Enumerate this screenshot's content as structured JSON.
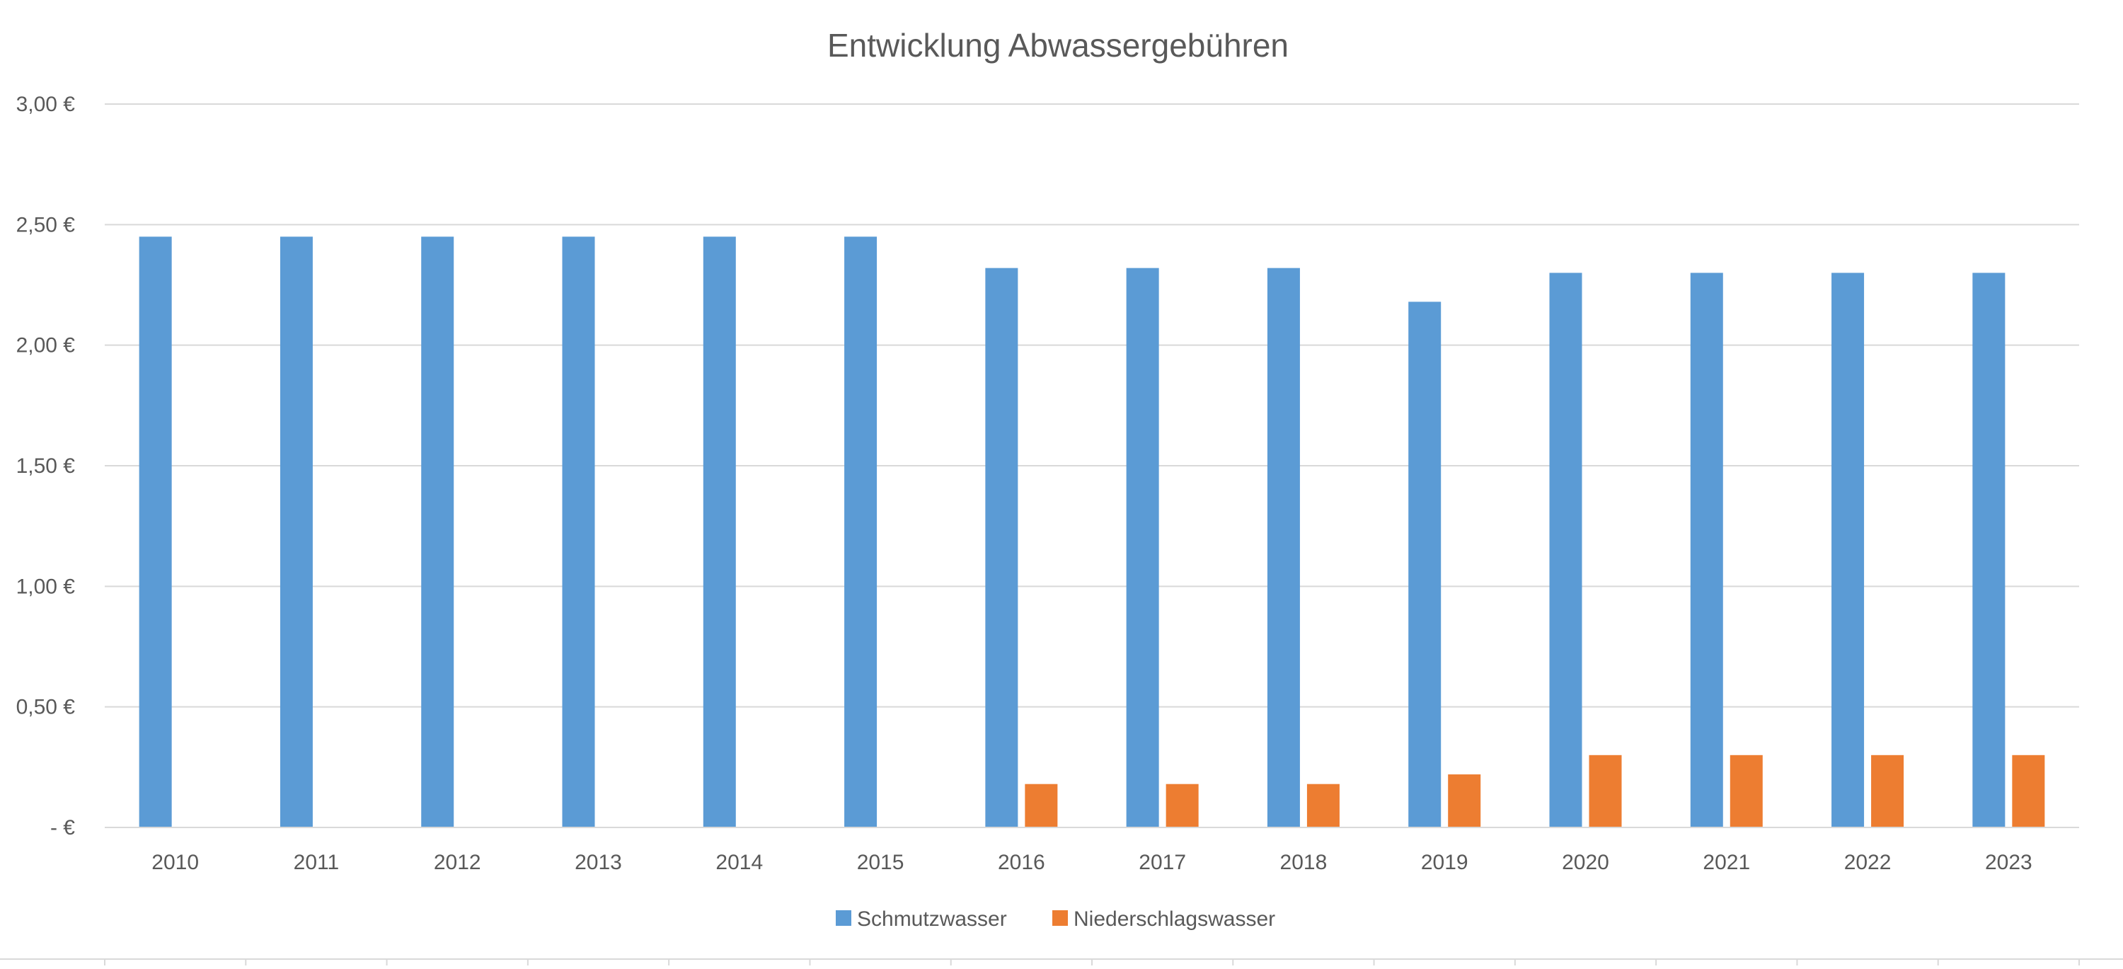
{
  "chart_data": {
    "type": "bar",
    "title": "Entwicklung Abwassergebühren",
    "xlabel": "",
    "ylabel": "",
    "categories": [
      "2010",
      "2011",
      "2012",
      "2013",
      "2014",
      "2015",
      "2016",
      "2017",
      "2018",
      "2019",
      "2020",
      "2021",
      "2022",
      "2023"
    ],
    "series": [
      {
        "name": "Schmutzwasser",
        "color": "#5B9BD5",
        "values": [
          2.45,
          2.45,
          2.45,
          2.45,
          2.45,
          2.45,
          2.32,
          2.32,
          2.32,
          2.18,
          2.3,
          2.3,
          2.3,
          2.3
        ]
      },
      {
        "name": "Niederschlagswasser",
        "color": "#ED7D31",
        "values": [
          0,
          0,
          0,
          0,
          0,
          0,
          0.18,
          0.18,
          0.18,
          0.22,
          0.3,
          0.3,
          0.3,
          0.3
        ]
      }
    ],
    "ylim": [
      0,
      3
    ],
    "y_ticks": [
      {
        "value": 0,
        "label": "-  €"
      },
      {
        "value": 0.5,
        "label": "0,50 €"
      },
      {
        "value": 1,
        "label": "1,00 €"
      },
      {
        "value": 1.5,
        "label": "1,50 €"
      },
      {
        "value": 2,
        "label": "2,00 €"
      },
      {
        "value": 2.5,
        "label": "2,50 €"
      },
      {
        "value": 3,
        "label": "3,00 €"
      }
    ],
    "grid": true,
    "legend_position": "bottom"
  }
}
